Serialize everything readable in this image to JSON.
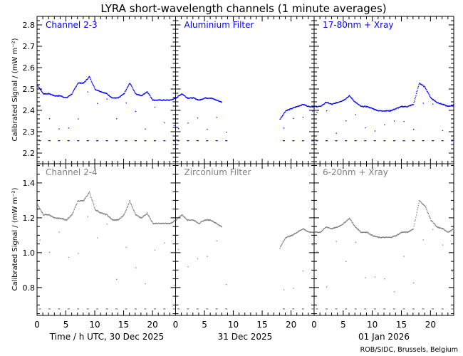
{
  "chart_data": {
    "type": "scatter",
    "title": "LYRA short-wavelength channels (1 minute averages)",
    "ylabel": "Calibrated Signal / (mW m⁻²)",
    "xlabels": [
      "Time / h UTC, 30 Dec 2025",
      "31 Dec 2025",
      "01 Jan 2026"
    ],
    "x_ticks": [
      "0",
      "5",
      "10",
      "15",
      "20"
    ],
    "xlim": [
      0,
      24
    ],
    "credit": "ROB/SIDC, Brussels, Belgium",
    "rows": [
      {
        "color": "#0000ff",
        "ylim": [
          2.15,
          2.84
        ],
        "y_ticks": [
          "2.2",
          "2.3",
          "2.4",
          "2.5",
          "2.6",
          "2.7",
          "2.8"
        ],
        "y_tick_values": [
          2.2,
          2.3,
          2.4,
          2.5,
          2.6,
          2.7,
          2.8
        ],
        "dropout_level": 2.26,
        "panels": [
          {
            "label": "Channel 2-3",
            "values": [
              2.52,
              2.48,
              2.48,
              2.47,
              2.47,
              2.46,
              2.48,
              2.53,
              2.53,
              2.56,
              2.5,
              2.49,
              2.48,
              2.46,
              2.46,
              2.48,
              2.53,
              2.48,
              2.47,
              2.49,
              2.45,
              2.45,
              2.45,
              2.45,
              2.46
            ]
          },
          {
            "label": "Aluminium Filter",
            "values": [
              2.46,
              2.48,
              2.46,
              2.46,
              2.45,
              2.46,
              2.46,
              2.45,
              2.44,
              null,
              null,
              null,
              null,
              null,
              null,
              null,
              null,
              null,
              2.36,
              2.4,
              2.41,
              2.42,
              2.43,
              2.42,
              2.42
            ]
          },
          {
            "label": "17-80nm + Xray",
            "values": [
              2.42,
              2.42,
              2.44,
              2.43,
              2.44,
              2.45,
              2.47,
              2.44,
              2.42,
              2.42,
              2.41,
              2.4,
              2.4,
              2.4,
              2.41,
              2.42,
              2.42,
              2.43,
              2.53,
              2.51,
              2.46,
              2.44,
              2.43,
              2.42,
              2.43
            ]
          }
        ]
      },
      {
        "color": "#808080",
        "ylim": [
          0.64,
          1.51
        ],
        "y_ticks": [
          "0.8",
          "1.0",
          "1.2",
          "1.4"
        ],
        "y_tick_values": [
          0.8,
          1.0,
          1.2,
          1.4
        ],
        "dropout_level": 0.68,
        "panels": [
          {
            "label": "Channel 2-4",
            "values": [
              1.28,
              1.22,
              1.22,
              1.2,
              1.2,
              1.19,
              1.22,
              1.3,
              1.3,
              1.35,
              1.25,
              1.23,
              1.22,
              1.19,
              1.19,
              1.22,
              1.3,
              1.22,
              1.2,
              1.23,
              1.17,
              1.17,
              1.17,
              1.17,
              1.19
            ]
          },
          {
            "label": "Zirconium Filter",
            "values": [
              1.19,
              1.22,
              1.19,
              1.19,
              1.17,
              1.19,
              1.19,
              1.17,
              1.15,
              null,
              null,
              null,
              null,
              null,
              null,
              null,
              null,
              null,
              1.03,
              1.09,
              1.1,
              1.12,
              1.14,
              1.12,
              1.12
            ]
          },
          {
            "label": "6-20nm + Xray",
            "values": [
              1.12,
              1.12,
              1.15,
              1.14,
              1.15,
              1.17,
              1.2,
              1.15,
              1.12,
              1.12,
              1.1,
              1.09,
              1.09,
              1.09,
              1.1,
              1.12,
              1.12,
              1.14,
              1.3,
              1.27,
              1.19,
              1.15,
              1.14,
              1.12,
              1.14
            ]
          }
        ]
      }
    ]
  }
}
